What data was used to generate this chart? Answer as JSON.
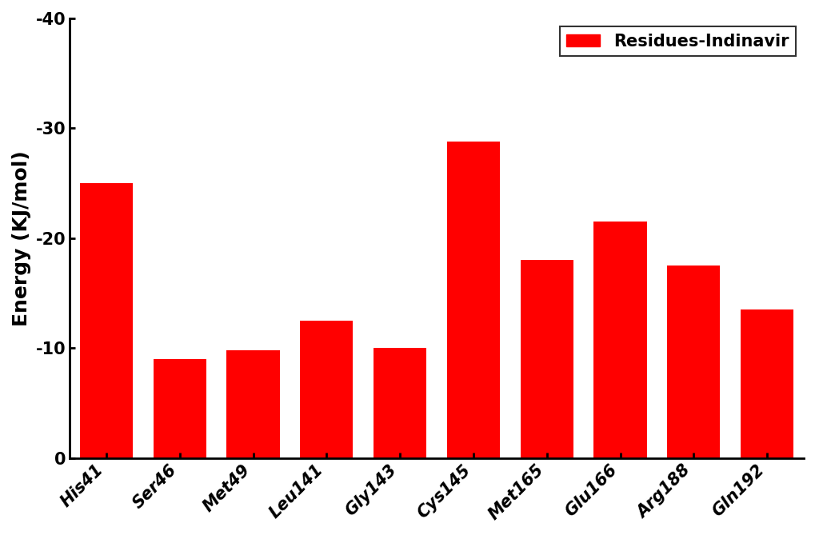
{
  "categories": [
    "His41",
    "Ser46",
    "Met49",
    "Leu141",
    "Gly143",
    "Cys145",
    "Met165",
    "Glu166",
    "Arg188",
    "Gln192"
  ],
  "values": [
    -25.0,
    -9.0,
    -9.8,
    -12.5,
    -10.0,
    -28.8,
    -18.0,
    -21.5,
    -17.5,
    -13.5
  ],
  "bar_color": "#ff0000",
  "ylabel": "Energy (KJ/mol)",
  "ylim": [
    0,
    -40
  ],
  "yticks": [
    0,
    -10,
    -20,
    -30,
    -40
  ],
  "yticklabels": [
    "0",
    "-10",
    "-20",
    "-30",
    "-40"
  ],
  "legend_label": "Residues-Indinavir",
  "bar_width": 0.72,
  "background_color": "#ffffff",
  "tick_fontsize": 15,
  "label_fontsize": 18,
  "legend_fontsize": 15
}
